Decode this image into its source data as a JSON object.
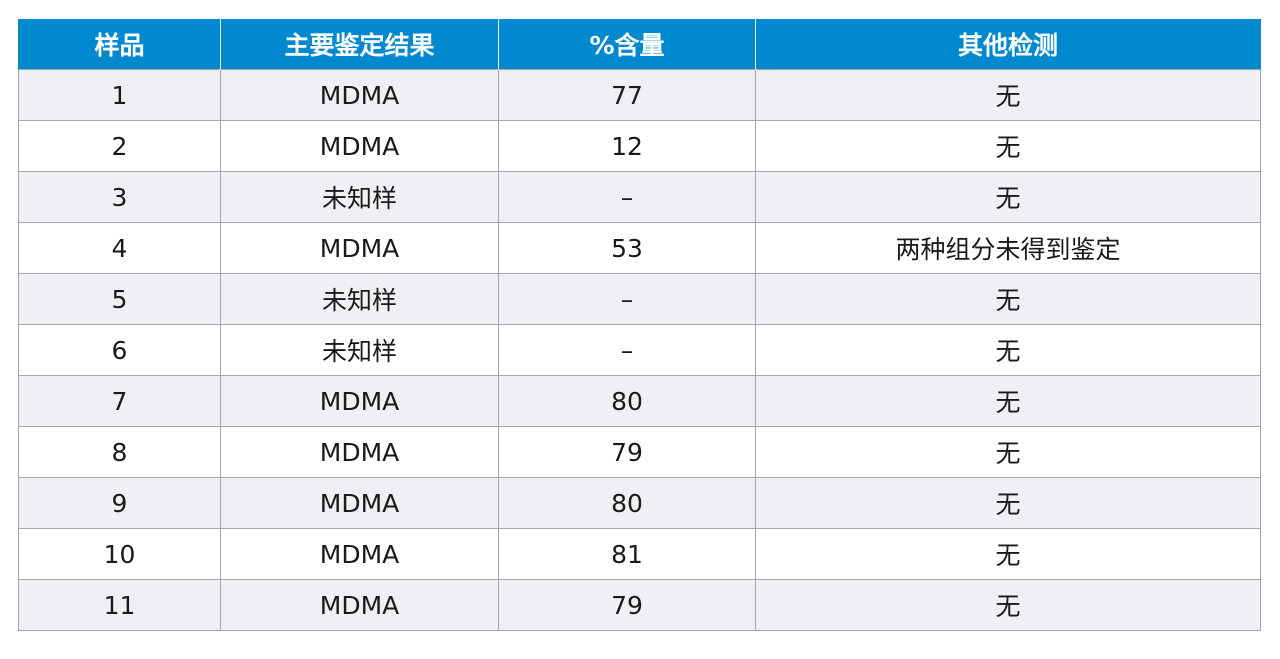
{
  "table": {
    "headers": [
      "样品",
      "主要鉴定结果",
      "%含量",
      "其他检测"
    ],
    "rows": [
      [
        "1",
        "MDMA",
        "77",
        "无"
      ],
      [
        "2",
        "MDMA",
        "12",
        "无"
      ],
      [
        "3",
        "未知样",
        "–",
        "无"
      ],
      [
        "4",
        "MDMA",
        "53",
        "两种组分未得到鉴定"
      ],
      [
        "5",
        "未知样",
        "–",
        "无"
      ],
      [
        "6",
        "未知样",
        "–",
        "无"
      ],
      [
        "7",
        "MDMA",
        "80",
        "无"
      ],
      [
        "8",
        "MDMA",
        "79",
        "无"
      ],
      [
        "9",
        "MDMA",
        "80",
        "无"
      ],
      [
        "10",
        "MDMA",
        "81",
        "无"
      ],
      [
        "11",
        "MDMA",
        "79",
        "无"
      ]
    ]
  },
  "colors": {
    "header_bg": "#0089cf",
    "header_text": "#ffffff",
    "row_alt_bg": "#eff0f3",
    "grid_line": "#a3a6ab"
  }
}
